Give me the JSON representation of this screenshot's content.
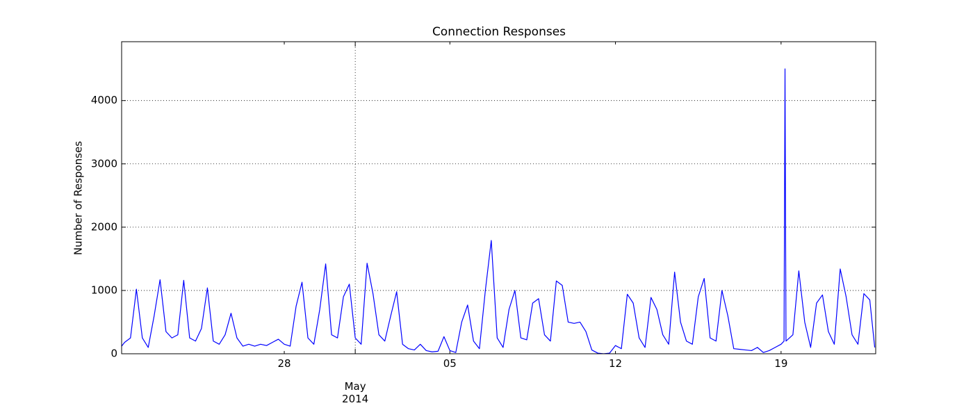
{
  "chart_data": {
    "type": "line",
    "title": "Connection Responses",
    "ylabel": "Number of Responses",
    "color": "#0000ff",
    "grid": true,
    "xlim": [
      "2014-04-21 03:00",
      "2014-05-23 00:00"
    ],
    "ylim": [
      0,
      4930
    ],
    "yticks": [
      0,
      1000,
      2000,
      3000,
      4000
    ],
    "xticks": [
      {
        "value": "2014-04-28 00:00",
        "label": "28"
      },
      {
        "value": "2014-05-05 00:00",
        "label": "05"
      },
      {
        "value": "2014-05-12 00:00",
        "label": "12"
      },
      {
        "value": "2014-05-19 00:00",
        "label": "19"
      }
    ],
    "x_major_ticks": [
      {
        "value": "2014-05-01 00:00",
        "label": "May\n2014"
      }
    ],
    "x": [
      "2014-04-21 03:00",
      "2014-04-21 06:00",
      "2014-04-21 12:00",
      "2014-04-21 18:00",
      "2014-04-22 00:00",
      "2014-04-22 06:00",
      "2014-04-22 12:00",
      "2014-04-22 18:00",
      "2014-04-23 00:00",
      "2014-04-23 06:00",
      "2014-04-23 12:00",
      "2014-04-23 18:00",
      "2014-04-24 00:00",
      "2014-04-24 06:00",
      "2014-04-24 12:00",
      "2014-04-24 18:00",
      "2014-04-25 00:00",
      "2014-04-25 06:00",
      "2014-04-25 12:00",
      "2014-04-25 18:00",
      "2014-04-26 00:00",
      "2014-04-26 06:00",
      "2014-04-26 12:00",
      "2014-04-26 18:00",
      "2014-04-27 00:00",
      "2014-04-27 06:00",
      "2014-04-27 12:00",
      "2014-04-27 18:00",
      "2014-04-28 00:00",
      "2014-04-28 06:00",
      "2014-04-28 12:00",
      "2014-04-28 18:00",
      "2014-04-29 00:00",
      "2014-04-29 06:00",
      "2014-04-29 12:00",
      "2014-04-29 18:00",
      "2014-04-30 00:00",
      "2014-04-30 06:00",
      "2014-04-30 12:00",
      "2014-04-30 18:00",
      "2014-05-01 00:00",
      "2014-05-01 06:00",
      "2014-05-01 12:00",
      "2014-05-01 18:00",
      "2014-05-02 00:00",
      "2014-05-02 06:00",
      "2014-05-02 12:00",
      "2014-05-02 18:00",
      "2014-05-03 00:00",
      "2014-05-03 06:00",
      "2014-05-03 12:00",
      "2014-05-03 18:00",
      "2014-05-04 00:00",
      "2014-05-04 06:00",
      "2014-05-04 12:00",
      "2014-05-04 18:00",
      "2014-05-05 00:00",
      "2014-05-05 06:00",
      "2014-05-05 12:00",
      "2014-05-05 18:00",
      "2014-05-06 00:00",
      "2014-05-06 06:00",
      "2014-05-06 12:00",
      "2014-05-06 18:00",
      "2014-05-07 00:00",
      "2014-05-07 06:00",
      "2014-05-07 12:00",
      "2014-05-07 18:00",
      "2014-05-08 00:00",
      "2014-05-08 06:00",
      "2014-05-08 12:00",
      "2014-05-08 18:00",
      "2014-05-09 00:00",
      "2014-05-09 06:00",
      "2014-05-09 12:00",
      "2014-05-09 18:00",
      "2014-05-10 00:00",
      "2014-05-10 06:00",
      "2014-05-10 12:00",
      "2014-05-10 18:00",
      "2014-05-11 00:00",
      "2014-05-11 06:00",
      "2014-05-11 12:00",
      "2014-05-11 18:00",
      "2014-05-12 00:00",
      "2014-05-12 06:00",
      "2014-05-12 12:00",
      "2014-05-12 18:00",
      "2014-05-13 00:00",
      "2014-05-13 06:00",
      "2014-05-13 12:00",
      "2014-05-13 18:00",
      "2014-05-14 00:00",
      "2014-05-14 06:00",
      "2014-05-14 12:00",
      "2014-05-14 18:00",
      "2014-05-15 00:00",
      "2014-05-15 06:00",
      "2014-05-15 12:00",
      "2014-05-15 18:00",
      "2014-05-16 00:00",
      "2014-05-16 06:00",
      "2014-05-16 12:00",
      "2014-05-16 18:00",
      "2014-05-17 00:00",
      "2014-05-17 06:00",
      "2014-05-17 12:00",
      "2014-05-17 18:00",
      "2014-05-18 00:00",
      "2014-05-18 06:00",
      "2014-05-18 12:00",
      "2014-05-18 18:00",
      "2014-05-19 00:00",
      "2014-05-19 03:00",
      "2014-05-19 04:00",
      "2014-05-19 05:00",
      "2014-05-19 12:00",
      "2014-05-19 18:00",
      "2014-05-20 00:00",
      "2014-05-20 06:00",
      "2014-05-20 12:00",
      "2014-05-20 18:00",
      "2014-05-21 00:00",
      "2014-05-21 06:00",
      "2014-05-21 12:00",
      "2014-05-21 18:00",
      "2014-05-22 00:00",
      "2014-05-22 06:00",
      "2014-05-22 12:00",
      "2014-05-22 18:00",
      "2014-05-22 23:00"
    ],
    "values": [
      120,
      180,
      250,
      1020,
      250,
      100,
      600,
      1170,
      350,
      250,
      300,
      1160,
      250,
      200,
      400,
      1040,
      200,
      150,
      300,
      640,
      250,
      120,
      150,
      120,
      150,
      130,
      180,
      230,
      150,
      120,
      750,
      1130,
      250,
      150,
      700,
      1420,
      300,
      250,
      900,
      1100,
      250,
      150,
      1430,
      950,
      300,
      200,
      600,
      980,
      150,
      80,
      60,
      150,
      50,
      30,
      40,
      270,
      50,
      20,
      500,
      770,
      200,
      80,
      1000,
      1790,
      250,
      100,
      700,
      1000,
      250,
      220,
      800,
      870,
      300,
      200,
      1150,
      1080,
      500,
      480,
      500,
      350,
      60,
      10,
      0,
      10,
      130,
      80,
      940,
      800,
      250,
      100,
      890,
      700,
      300,
      150,
      1290,
      500,
      200,
      150,
      900,
      1190,
      250,
      200,
      1000,
      600,
      80,
      70,
      60,
      50,
      100,
      20,
      50,
      100,
      150,
      200,
      4500,
      200,
      300,
      1310,
      500,
      100,
      800,
      930,
      350,
      150,
      1340,
      900,
      300,
      150,
      950,
      850,
      100
    ]
  }
}
